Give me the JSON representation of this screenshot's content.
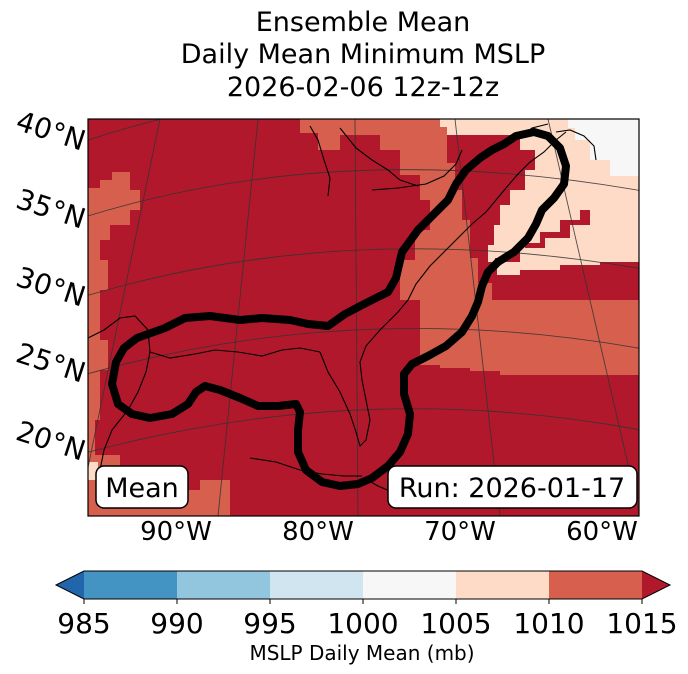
{
  "title": {
    "line1": "Ensemble Mean",
    "line2": "Daily Mean Minimum MSLP",
    "line3": "2026-02-06 12z-12z"
  },
  "map": {
    "latitude_labels": [
      "40°N",
      "35°N",
      "30°N",
      "25°N",
      "20°N"
    ],
    "longitude_labels": [
      "90°W",
      "80°W",
      "70°W",
      "60°W"
    ],
    "mean_label": "Mean",
    "run_label": "Run: 2026-01-17",
    "contour_color": "#000000",
    "gridline_color": "#333333"
  },
  "legend": {
    "label": "MSLP Daily Mean (mb)",
    "ticks": [
      "985",
      "990",
      "995",
      "1000",
      "1005",
      "1010",
      "1015"
    ],
    "bins": [
      {
        "range": "<985",
        "color": "#2166ac"
      },
      {
        "range": "985-990",
        "color": "#4393c3"
      },
      {
        "range": "990-995",
        "color": "#92c5de"
      },
      {
        "range": "995-1000",
        "color": "#d1e5f0"
      },
      {
        "range": "1000-1005",
        "color": "#f7f7f7"
      },
      {
        "range": "1005-1010",
        "color": "#fddbc7"
      },
      {
        "range": "1010-1015",
        "color": "#d6604d"
      },
      {
        "range": ">1015",
        "color": "#b2182b"
      }
    ]
  }
}
